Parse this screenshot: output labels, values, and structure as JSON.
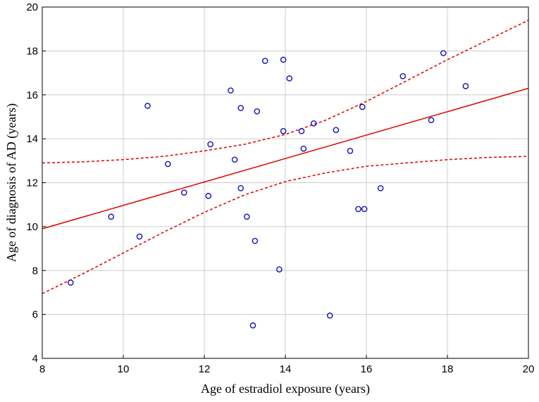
{
  "chart_data": {
    "type": "scatter",
    "title": "",
    "xlabel": "Age of estradiol exposure (years)",
    "ylabel": "Age of diagnosis of AD (years)",
    "xlim": [
      8,
      20
    ],
    "ylim": [
      4,
      20
    ],
    "xticks": [
      8,
      10,
      12,
      14,
      16,
      18,
      20
    ],
    "yticks": [
      4,
      6,
      8,
      10,
      12,
      14,
      16,
      18,
      20
    ],
    "xtick_labels": [
      "8",
      "10",
      "12",
      "14",
      "16",
      "18",
      "20"
    ],
    "ytick_labels": [
      "4",
      "6",
      "8",
      "10",
      "12",
      "14",
      "16",
      "18",
      "20"
    ],
    "grid": true,
    "legend": "none",
    "points": [
      {
        "x": 8.7,
        "y": 7.45
      },
      {
        "x": 9.7,
        "y": 10.45
      },
      {
        "x": 10.4,
        "y": 9.55
      },
      {
        "x": 10.6,
        "y": 15.5
      },
      {
        "x": 11.1,
        "y": 12.85
      },
      {
        "x": 11.5,
        "y": 11.55
      },
      {
        "x": 12.1,
        "y": 11.4
      },
      {
        "x": 12.15,
        "y": 13.75
      },
      {
        "x": 12.65,
        "y": 16.2
      },
      {
        "x": 12.75,
        "y": 13.05
      },
      {
        "x": 12.9,
        "y": 11.75
      },
      {
        "x": 12.9,
        "y": 15.4
      },
      {
        "x": 13.05,
        "y": 10.45
      },
      {
        "x": 13.2,
        "y": 5.5
      },
      {
        "x": 13.25,
        "y": 9.35
      },
      {
        "x": 13.3,
        "y": 15.25
      },
      {
        "x": 13.5,
        "y": 17.55
      },
      {
        "x": 13.85,
        "y": 8.05
      },
      {
        "x": 13.95,
        "y": 14.35
      },
      {
        "x": 13.95,
        "y": 17.6
      },
      {
        "x": 14.1,
        "y": 16.75
      },
      {
        "x": 14.4,
        "y": 14.35
      },
      {
        "x": 14.45,
        "y": 13.55
      },
      {
        "x": 14.7,
        "y": 14.7
      },
      {
        "x": 15.1,
        "y": 5.95
      },
      {
        "x": 15.25,
        "y": 14.4
      },
      {
        "x": 15.6,
        "y": 13.45
      },
      {
        "x": 15.8,
        "y": 10.8
      },
      {
        "x": 15.9,
        "y": 15.45
      },
      {
        "x": 15.95,
        "y": 10.8
      },
      {
        "x": 16.35,
        "y": 11.75
      },
      {
        "x": 16.9,
        "y": 16.85
      },
      {
        "x": 17.6,
        "y": 14.85
      },
      {
        "x": 17.9,
        "y": 17.9
      },
      {
        "x": 18.45,
        "y": 16.4
      }
    ],
    "regression_line": {
      "x": [
        8,
        20
      ],
      "y": [
        9.9,
        16.3
      ]
    },
    "confidence_upper": {
      "x": [
        8,
        9,
        10,
        11,
        12,
        13,
        14,
        15,
        16,
        17,
        18,
        19,
        20
      ],
      "y": [
        12.9,
        12.95,
        13.05,
        13.2,
        13.45,
        13.75,
        14.2,
        14.85,
        15.7,
        16.65,
        17.6,
        18.5,
        19.4
      ]
    },
    "confidence_lower": {
      "x": [
        8,
        9,
        10,
        11,
        12,
        13,
        14,
        15,
        16,
        17,
        18,
        19,
        20
      ],
      "y": [
        6.95,
        7.85,
        8.8,
        9.75,
        10.65,
        11.45,
        12.05,
        12.45,
        12.75,
        12.9,
        13.05,
        13.15,
        13.2
      ]
    },
    "colors": {
      "point": "#1010c0",
      "fit": "#e00000",
      "grid": "#cccccc",
      "axis": "#000000"
    }
  }
}
